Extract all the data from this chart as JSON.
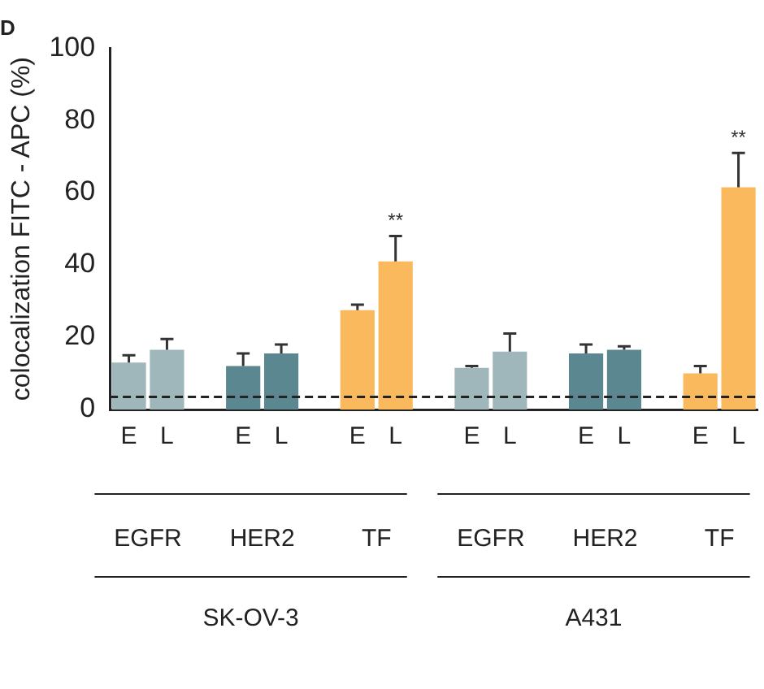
{
  "chart_data": {
    "type": "bar",
    "title": "D",
    "ylabel": "colocalization FITC - APC (%)",
    "categories": [
      "E",
      "L",
      null,
      "E",
      "L",
      null,
      "E",
      "L",
      null,
      "E",
      "L",
      null,
      "E",
      "L",
      null,
      "E",
      "L"
    ],
    "values": [
      13,
      16.5,
      null,
      12,
      15.5,
      null,
      27.5,
      41,
      null,
      11.5,
      16,
      null,
      15.5,
      16.5,
      null,
      10,
      61.5
    ],
    "colors": [
      "#9fb6bb",
      "#9fb6bb",
      null,
      "#5b8790",
      "#5b8790",
      null,
      "#fbb95e",
      "#fbb95e",
      null,
      "#9fb6bb",
      "#9fb6bb",
      null,
      "#5b8790",
      "#5b8790",
      null,
      "#fbb95e",
      "#fbb95e"
    ],
    "errors": [
      [
        13,
        15
      ],
      [
        16.5,
        19.5
      ],
      null,
      [
        12,
        15.5
      ],
      [
        15.5,
        18
      ],
      null,
      [
        27.5,
        29
      ],
      [
        41,
        48
      ],
      null,
      [
        11.5,
        12
      ],
      [
        16,
        21
      ],
      null,
      [
        15.5,
        18
      ],
      [
        16.5,
        17.5
      ],
      null,
      [
        10,
        12
      ],
      [
        61.5,
        71
      ]
    ],
    "value_labels": [
      null,
      null,
      null,
      null,
      null,
      null,
      null,
      "**",
      null,
      null,
      null,
      null,
      null,
      null,
      null,
      null,
      "**"
    ],
    "annotations": [
      "EGFR",
      "HER2",
      "TF",
      "EGFR",
      "HER2",
      "TF",
      "SK-OV-3",
      "A431"
    ],
    "ref_lines": [
      {
        "axis": "y",
        "value": 3.5,
        "color": "#222222",
        "line_style": "dashed"
      }
    ],
    "ylim": [
      0,
      100
    ],
    "yticks": [
      0,
      20,
      40,
      60,
      80,
      100
    ],
    "grid": false,
    "legend": false
  }
}
